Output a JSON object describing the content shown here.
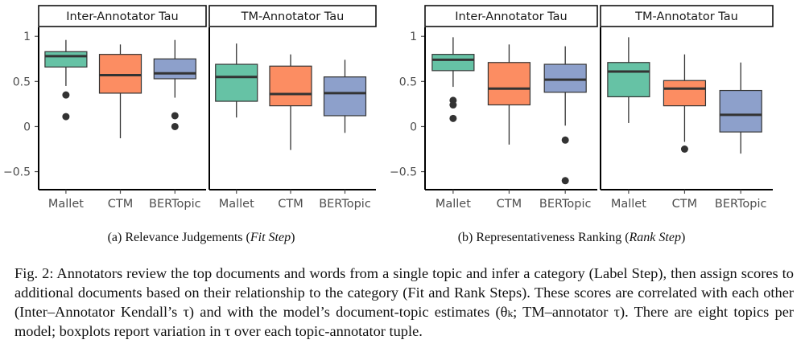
{
  "colors": {
    "Mallet": "#66c2a5",
    "CTM": "#fc8d62",
    "BERTopic": "#8da0cb",
    "median": "#333333",
    "axis_text": "#4d4d4d"
  },
  "chart_data": [
    {
      "type": "boxplot",
      "subfigure": "a",
      "caption_prefix": "(a) Relevance Judgements (",
      "caption_italic": "Fit Step",
      "caption_suffix": ")",
      "yticks": [
        1,
        0.5,
        0,
        -0.5
      ],
      "ytick_labels": [
        "1",
        "0.5",
        "0",
        "−0.5"
      ],
      "ylim": [
        -0.7,
        1.1
      ],
      "categories": [
        "Mallet",
        "CTM",
        "BERTopic"
      ],
      "panels": [
        {
          "title": "Inter-Annotator Tau",
          "boxes": [
            {
              "category": "Mallet",
              "q1": 0.66,
              "median": 0.78,
              "q3": 0.83,
              "whisker_low": 0.45,
              "whisker_high": 0.96,
              "outliers": [
                0.35,
                0.11
              ]
            },
            {
              "category": "CTM",
              "q1": 0.37,
              "median": 0.57,
              "q3": 0.8,
              "whisker_low": -0.13,
              "whisker_high": 0.91,
              "outliers": []
            },
            {
              "category": "BERTopic",
              "q1": 0.53,
              "median": 0.59,
              "q3": 0.75,
              "whisker_low": 0.32,
              "whisker_high": 0.96,
              "outliers": [
                0.12,
                0.0
              ]
            }
          ]
        },
        {
          "title": "TM-Annotator Tau",
          "boxes": [
            {
              "category": "Mallet",
              "q1": 0.28,
              "median": 0.55,
              "q3": 0.69,
              "whisker_low": 0.1,
              "whisker_high": 0.92,
              "outliers": []
            },
            {
              "category": "CTM",
              "q1": 0.23,
              "median": 0.36,
              "q3": 0.67,
              "whisker_low": -0.26,
              "whisker_high": 0.8,
              "outliers": []
            },
            {
              "category": "BERTopic",
              "q1": 0.12,
              "median": 0.37,
              "q3": 0.55,
              "whisker_low": -0.07,
              "whisker_high": 0.74,
              "outliers": []
            }
          ]
        }
      ]
    },
    {
      "type": "boxplot",
      "subfigure": "b",
      "caption_prefix": "(b) Representativeness Ranking (",
      "caption_italic": "Rank Step",
      "caption_suffix": ")",
      "yticks": [
        1,
        0.5,
        0,
        -0.5
      ],
      "ytick_labels": [
        "1",
        "0.5",
        "0",
        "−0.5"
      ],
      "ylim": [
        -0.7,
        1.1
      ],
      "categories": [
        "Mallet",
        "CTM",
        "BERTopic"
      ],
      "panels": [
        {
          "title": "Inter-Annotator Tau",
          "boxes": [
            {
              "category": "Mallet",
              "q1": 0.62,
              "median": 0.74,
              "q3": 0.8,
              "whisker_low": 0.44,
              "whisker_high": 0.99,
              "outliers": [
                0.29,
                0.24,
                0.09
              ]
            },
            {
              "category": "CTM",
              "q1": 0.24,
              "median": 0.42,
              "q3": 0.71,
              "whisker_low": -0.2,
              "whisker_high": 0.91,
              "outliers": []
            },
            {
              "category": "BERTopic",
              "q1": 0.38,
              "median": 0.52,
              "q3": 0.69,
              "whisker_low": 0.01,
              "whisker_high": 0.89,
              "outliers": [
                -0.15,
                -0.6
              ]
            }
          ]
        },
        {
          "title": "TM-Annotator Tau",
          "boxes": [
            {
              "category": "Mallet",
              "q1": 0.33,
              "median": 0.61,
              "q3": 0.71,
              "whisker_low": 0.04,
              "whisker_high": 0.99,
              "outliers": []
            },
            {
              "category": "CTM",
              "q1": 0.23,
              "median": 0.42,
              "q3": 0.51,
              "whisker_low": -0.17,
              "whisker_high": 0.8,
              "outliers": [
                -0.25
              ]
            },
            {
              "category": "BERTopic",
              "q1": -0.06,
              "median": 0.13,
              "q3": 0.4,
              "whisker_low": -0.3,
              "whisker_high": 0.71,
              "outliers": []
            }
          ]
        }
      ]
    }
  ],
  "main_caption": "Fig. 2: Annotators review the top documents and words from a single topic and infer a category (Label Step), then assign scores to additional documents based on their relationship to the category (Fit and Rank Steps). These scores are correlated with each other (Inter–Annotator Kendall’s τ) and with the model’s document-topic estimates (θₖ; TM–annotator τ). There are eight topics per model; boxplots report variation in τ over each topic-annotator tuple."
}
